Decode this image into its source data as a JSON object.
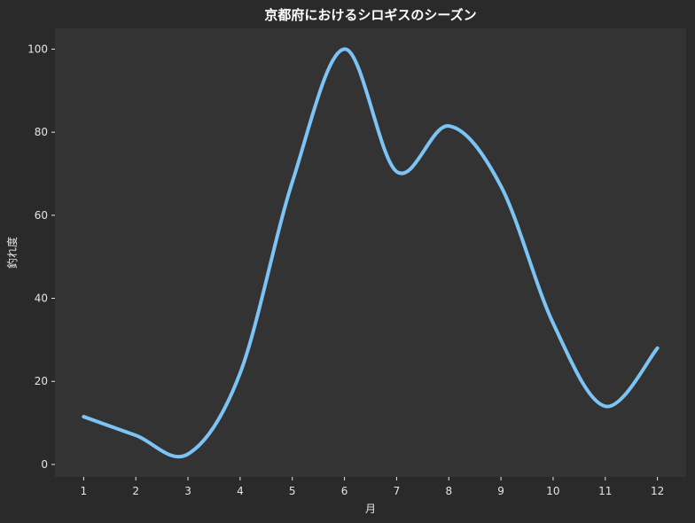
{
  "chart_data": {
    "type": "line",
    "title": "京都府におけるシロギスのシーズン",
    "xlabel": "月",
    "ylabel": "釣れ度",
    "x": [
      1,
      2,
      3,
      4,
      5,
      6,
      7,
      8,
      9,
      10,
      11,
      12
    ],
    "series": [
      {
        "values": [
          11.5,
          7.0,
          2.5,
          22.0,
          68.0,
          100.0,
          70.5,
          81.5,
          67.0,
          34.0,
          14.0,
          28.0
        ]
      }
    ],
    "xlim": [
      0.45,
      12.55
    ],
    "ylim": [
      -3,
      105
    ],
    "xticks": [
      "1",
      "2",
      "3",
      "4",
      "5",
      "6",
      "7",
      "8",
      "9",
      "10",
      "11",
      "12"
    ],
    "yticks": [
      "0",
      "20",
      "40",
      "60",
      "80",
      "100"
    ],
    "grid": false,
    "colors": {
      "background": "#2a2a2a",
      "plot_background": "#333333",
      "line": "#7cc4f5",
      "text": "#e6e6e6",
      "title": "#ffffff"
    }
  }
}
